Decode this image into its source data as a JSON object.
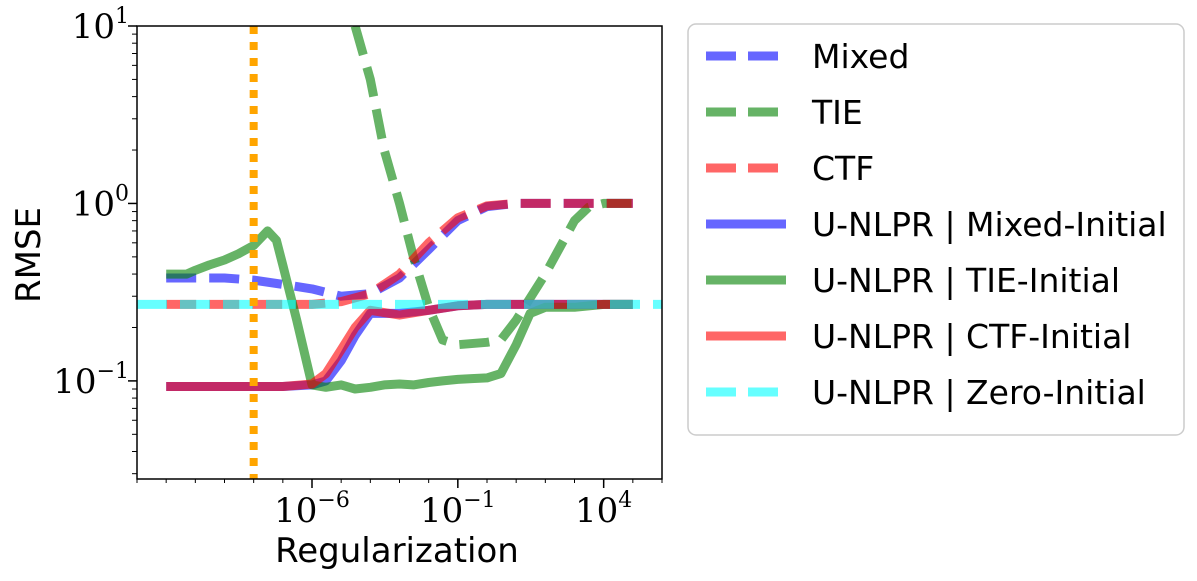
{
  "chart_data": {
    "type": "line",
    "title": "",
    "xlabel": "Regularization",
    "ylabel": "RMSE",
    "x_scale": "log",
    "y_scale": "log",
    "xlim": [
      1e-12,
      1000000.0
    ],
    "ylim": [
      0.028,
      10
    ],
    "x_ticks": [
      {
        "value": 1e-06,
        "base": "10",
        "exp": "−6"
      },
      {
        "value": 0.1,
        "base": "10",
        "exp": "−1"
      },
      {
        "value": 10000,
        "base": "10",
        "exp": "4"
      }
    ],
    "y_ticks": [
      {
        "value": 0.1,
        "base": "10",
        "exp": "−1"
      },
      {
        "value": 1,
        "base": "10",
        "exp": "0"
      },
      {
        "value": 10,
        "base": "10",
        "exp": "1"
      }
    ],
    "vline": {
      "x": 1e-08,
      "color": "#FFA500",
      "style": "dotted"
    },
    "legend_position": "outside-right",
    "series": [
      {
        "name": "Mixed",
        "color": "#0000FF",
        "style": "dashed",
        "x": [
          1e-11,
          1e-10,
          1e-09,
          1e-08,
          1e-07,
          1e-06,
          1e-05,
          0.0001,
          0.001,
          0.01,
          0.1,
          1,
          10,
          100,
          1000,
          10000,
          100000
        ],
        "y": [
          0.38,
          0.38,
          0.38,
          0.37,
          0.35,
          0.33,
          0.3,
          0.31,
          0.38,
          0.55,
          0.8,
          0.96,
          1.0,
          1.0,
          1.0,
          1.0,
          1.0
        ]
      },
      {
        "name": "TIE",
        "color": "#008000",
        "style": "dashed",
        "x": [
          3e-05,
          0.0001,
          0.0003,
          0.001,
          0.003,
          0.01,
          0.03,
          0.1,
          1,
          3,
          10,
          100,
          1000,
          3000,
          10000,
          100000
        ],
        "y": [
          10,
          5,
          2.0,
          1.0,
          0.5,
          0.26,
          0.17,
          0.16,
          0.165,
          0.17,
          0.22,
          0.4,
          0.8,
          0.95,
          1.0,
          1.0
        ]
      },
      {
        "name": "CTF",
        "color": "#FF0000",
        "style": "dashed",
        "x": [
          1e-11,
          1e-10,
          1e-09,
          1e-08,
          1e-07,
          1e-06,
          1e-05,
          0.0001,
          0.001,
          0.01,
          0.1,
          1,
          10,
          100,
          1000,
          10000,
          100000
        ],
        "y": [
          0.27,
          0.27,
          0.27,
          0.27,
          0.27,
          0.27,
          0.28,
          0.31,
          0.4,
          0.6,
          0.83,
          0.97,
          1.0,
          1.0,
          1.0,
          1.0,
          1.0
        ]
      },
      {
        "name": "U-NLPR | Mixed-Initial",
        "color": "#0000FF",
        "style": "solid",
        "x": [
          1e-11,
          1e-10,
          1e-09,
          1e-08,
          1e-07,
          1e-06,
          3e-06,
          1e-05,
          3e-05,
          0.0001,
          0.001,
          0.01,
          0.1,
          1,
          10,
          100,
          1000,
          10000,
          100000
        ],
        "y": [
          0.093,
          0.093,
          0.093,
          0.093,
          0.093,
          0.095,
          0.1,
          0.13,
          0.18,
          0.24,
          0.24,
          0.25,
          0.265,
          0.27,
          0.27,
          0.27,
          0.27,
          0.27,
          0.27
        ]
      },
      {
        "name": "U-NLPR | TIE-Initial",
        "color": "#008000",
        "style": "solid",
        "x": [
          1e-11,
          5e-11,
          1e-10,
          3e-10,
          1e-09,
          3e-09,
          1e-08,
          3e-08,
          6e-08,
          1e-07,
          3e-07,
          1e-06,
          3e-06,
          1e-05,
          3e-05,
          0.0001,
          0.0003,
          0.001,
          0.003,
          0.01,
          0.03,
          0.1,
          0.3,
          1,
          3,
          10,
          30,
          100,
          1000,
          10000,
          100000
        ],
        "y": [
          0.4,
          0.4,
          0.42,
          0.45,
          0.48,
          0.52,
          0.58,
          0.7,
          0.62,
          0.45,
          0.22,
          0.095,
          0.092,
          0.095,
          0.09,
          0.092,
          0.095,
          0.096,
          0.095,
          0.098,
          0.1,
          0.102,
          0.103,
          0.104,
          0.11,
          0.16,
          0.24,
          0.26,
          0.26,
          0.27,
          0.27
        ]
      },
      {
        "name": "U-NLPR | CTF-Initial",
        "color": "#FF0000",
        "style": "solid",
        "x": [
          1e-11,
          1e-10,
          1e-09,
          1e-08,
          1e-07,
          1e-06,
          3e-06,
          1e-05,
          3e-05,
          0.0001,
          0.001,
          0.01,
          0.1,
          1,
          10,
          100,
          1000,
          10000,
          100000
        ],
        "y": [
          0.093,
          0.093,
          0.093,
          0.093,
          0.093,
          0.096,
          0.11,
          0.15,
          0.2,
          0.25,
          0.235,
          0.25,
          0.265,
          0.27,
          0.27,
          0.27,
          0.27,
          0.27,
          0.27
        ]
      },
      {
        "name": "U-NLPR | Zero-Initial",
        "color": "#00FFFF",
        "style": "dashed",
        "x": [
          1e-12,
          1000000.0
        ],
        "y": [
          0.27,
          0.27
        ]
      }
    ]
  }
}
